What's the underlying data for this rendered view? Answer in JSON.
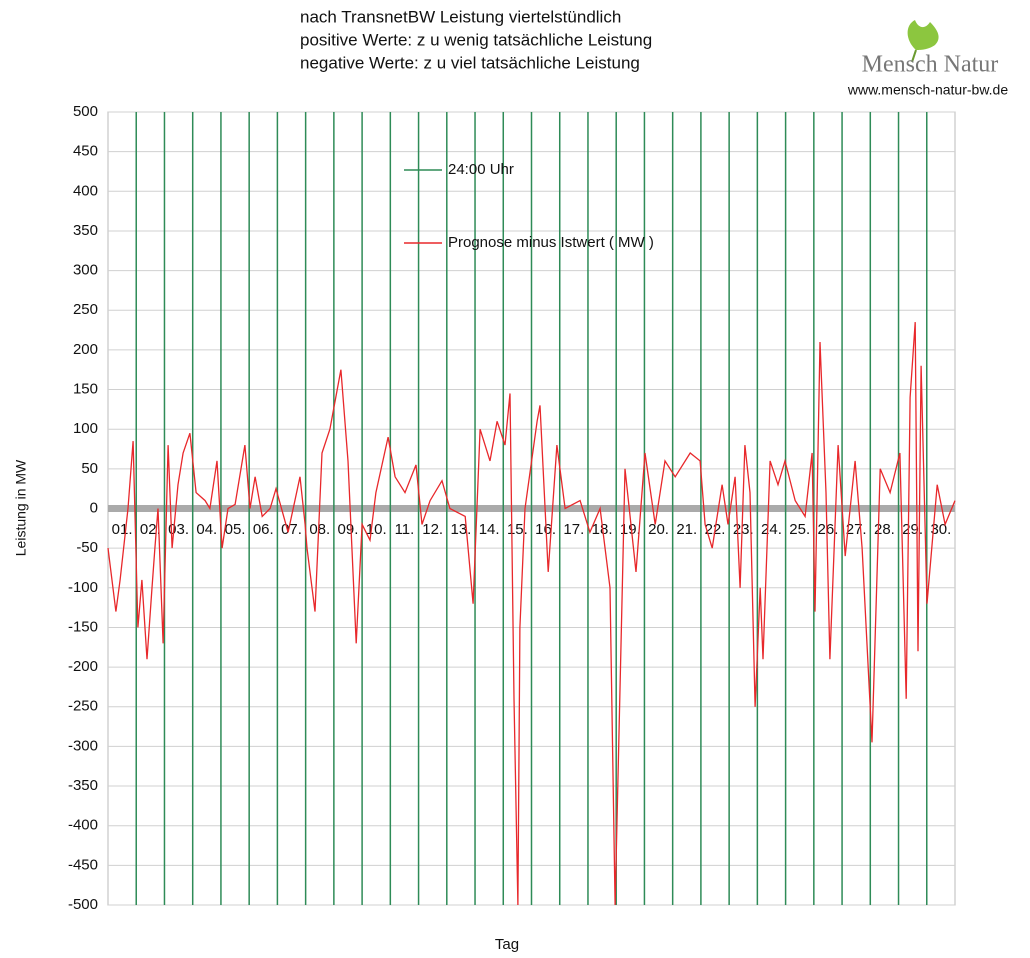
{
  "chart_data": {
    "type": "line",
    "title_lines": [
      "nach TransnetBW Leistung viertelstündlich",
      "positive Werte: z u wenig tatsächliche Leistung",
      "negative Werte: z u viel tatsächliche Leistung"
    ],
    "logo": {
      "name": "Mensch Natur",
      "url": "www.mensch-natur-bw.de"
    },
    "x_label": "Tag",
    "y_label": "Leistung in MW",
    "xlim": [
      0,
      30
    ],
    "ylim": [
      -500,
      500
    ],
    "yticks": [
      -500,
      -450,
      -400,
      -350,
      -300,
      -250,
      -200,
      -150,
      -100,
      -50,
      0,
      50,
      100,
      150,
      200,
      250,
      300,
      350,
      400,
      450,
      500
    ],
    "xticks": [
      {
        "value": 0.5,
        "label": "01."
      },
      {
        "value": 1.5,
        "label": "02."
      },
      {
        "value": 2.5,
        "label": "03."
      },
      {
        "value": 3.5,
        "label": "04."
      },
      {
        "value": 4.5,
        "label": "05."
      },
      {
        "value": 5.5,
        "label": "06."
      },
      {
        "value": 6.5,
        "label": "07."
      },
      {
        "value": 7.5,
        "label": "08."
      },
      {
        "value": 8.5,
        "label": "09."
      },
      {
        "value": 9.5,
        "label": "10."
      },
      {
        "value": 10.5,
        "label": "11."
      },
      {
        "value": 11.5,
        "label": "12."
      },
      {
        "value": 12.5,
        "label": "13."
      },
      {
        "value": 13.5,
        "label": "14."
      },
      {
        "value": 14.5,
        "label": "15."
      },
      {
        "value": 15.5,
        "label": "16."
      },
      {
        "value": 16.5,
        "label": "17."
      },
      {
        "value": 17.5,
        "label": "18."
      },
      {
        "value": 18.5,
        "label": "19."
      },
      {
        "value": 19.5,
        "label": "20."
      },
      {
        "value": 20.5,
        "label": "21."
      },
      {
        "value": 21.5,
        "label": "22."
      },
      {
        "value": 22.5,
        "label": "23."
      },
      {
        "value": 23.5,
        "label": "24."
      },
      {
        "value": 24.5,
        "label": "25."
      },
      {
        "value": 25.5,
        "label": "26."
      },
      {
        "value": 26.5,
        "label": "27."
      },
      {
        "value": 27.5,
        "label": "28."
      },
      {
        "value": 28.5,
        "label": "29."
      },
      {
        "value": 29.5,
        "label": "30."
      }
    ],
    "grid": true,
    "vlines": {
      "name": "24:00 Uhr",
      "color": "#2e8b57",
      "x": [
        1,
        2,
        3,
        4,
        5,
        6,
        7,
        8,
        9,
        10,
        11,
        12,
        13,
        14,
        15,
        16,
        17,
        18,
        19,
        20,
        21,
        22,
        23,
        24,
        25,
        26,
        27,
        28,
        29
      ]
    },
    "series": [
      {
        "name": "Prognose minus Istwert ( MW )",
        "color": "#e8282b",
        "x": [
          0,
          0.28,
          0.43,
          0.71,
          0.89,
          1.06,
          1.2,
          1.38,
          1.56,
          1.66,
          1.77,
          1.95,
          2.13,
          2.27,
          2.48,
          2.66,
          2.9,
          3.12,
          3.44,
          3.61,
          3.86,
          4.04,
          4.25,
          4.5,
          4.85,
          5.03,
          5.21,
          5.46,
          5.74,
          5.95,
          6.38,
          6.8,
          6.98,
          7.05,
          7.33,
          7.58,
          7.86,
          8.25,
          8.5,
          8.79,
          9.0,
          9.28,
          9.49,
          9.92,
          10.17,
          10.52,
          10.91,
          11.12,
          11.41,
          11.83,
          12.11,
          12.65,
          12.93,
          13.18,
          13.53,
          13.78,
          14.06,
          14.24,
          14.38,
          14.52,
          14.59,
          14.77,
          15.2,
          15.3,
          15.59,
          15.9,
          16.19,
          16.72,
          17.07,
          17.43,
          17.78,
          17.96,
          18.31,
          18.7,
          19.02,
          19.38,
          19.73,
          20.09,
          20.62,
          20.97,
          21.15,
          21.4,
          21.75,
          21.96,
          22.21,
          22.39,
          22.56,
          22.74,
          22.92,
          23.1,
          23.2,
          23.45,
          23.73,
          23.98,
          24.34,
          24.69,
          24.94,
          25.04,
          25.22,
          25.43,
          25.57,
          25.86,
          26.11,
          26.46,
          26.71,
          27.06,
          27.35,
          27.7,
          28.05,
          28.27,
          28.41,
          28.59,
          28.69,
          28.8,
          29.01,
          29.37,
          29.65,
          30.0
        ],
        "values": [
          -50,
          -130,
          -90,
          0,
          85,
          -150,
          -90,
          -190,
          -100,
          -50,
          0,
          -170,
          80,
          -50,
          30,
          70,
          95,
          20,
          10,
          0,
          60,
          -50,
          0,
          5,
          80,
          0,
          40,
          -10,
          0,
          25,
          -30,
          40,
          -20,
          -50,
          -130,
          70,
          100,
          175,
          60,
          -170,
          -20,
          -40,
          20,
          90,
          40,
          20,
          55,
          -20,
          10,
          35,
          0,
          -10,
          -120,
          100,
          60,
          110,
          80,
          145,
          -240,
          -500,
          -150,
          0,
          110,
          130,
          -80,
          80,
          0,
          10,
          -30,
          0,
          -100,
          -500,
          50,
          -80,
          70,
          -20,
          60,
          40,
          70,
          60,
          -20,
          -50,
          30,
          -20,
          40,
          -100,
          80,
          20,
          -250,
          -100,
          -190,
          60,
          30,
          60,
          10,
          -10,
          70,
          -130,
          210,
          20,
          -190,
          80,
          -60,
          60,
          -50,
          -295,
          50,
          20,
          70,
          -240,
          140,
          235,
          -180,
          180,
          -120,
          30,
          -20,
          10
        ]
      }
    ]
  }
}
